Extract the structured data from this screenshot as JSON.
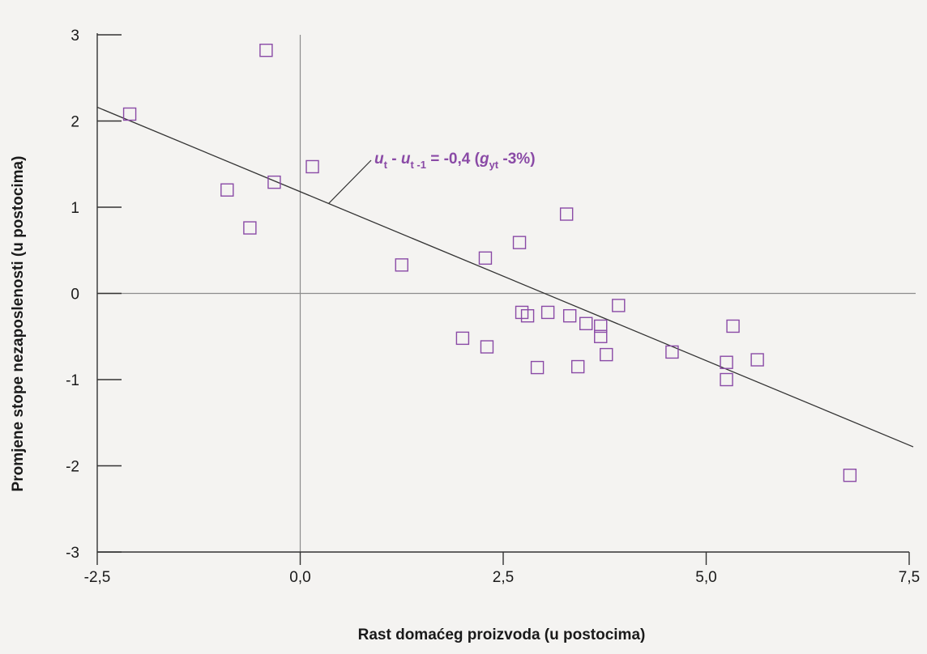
{
  "colors": {
    "background": "#f4f3f1",
    "axis": "#333333",
    "reference_line": "#8c8c8c",
    "marker": "#8a4aa6",
    "annotation": "#8a4aa6",
    "fit_line": "#333333"
  },
  "chart_data": {
    "type": "scatter",
    "title": "",
    "xlabel": "Rast domaćeg proizvoda (u postocima)",
    "ylabel": "Promjene stope nezaposlenosti (u postocima)",
    "xlim": [
      -2.5,
      7.5
    ],
    "ylim": [
      -3,
      3
    ],
    "x_ticks": [
      -2.5,
      0.0,
      2.5,
      5.0,
      7.5
    ],
    "x_tick_labels": [
      "-2,5",
      "0,0",
      "2,5",
      "5,0",
      "7,5"
    ],
    "y_ticks": [
      3,
      2,
      1,
      0,
      -1,
      -2,
      -3
    ],
    "y_tick_labels": [
      "3",
      "2",
      "1",
      "0",
      "-1",
      "-2",
      "-3"
    ],
    "reference_lines": {
      "x": 0,
      "y": 0
    },
    "grid": false,
    "marker_shape": "hollow-square",
    "points": [
      {
        "x": -2.1,
        "y": 2.08
      },
      {
        "x": -0.42,
        "y": 2.82
      },
      {
        "x": -0.9,
        "y": 1.2
      },
      {
        "x": -0.32,
        "y": 1.29
      },
      {
        "x": -0.62,
        "y": 0.76
      },
      {
        "x": 0.15,
        "y": 1.47
      },
      {
        "x": 1.25,
        "y": 0.33
      },
      {
        "x": 2.0,
        "y": -0.52
      },
      {
        "x": 2.28,
        "y": 0.41
      },
      {
        "x": 2.3,
        "y": -0.62
      },
      {
        "x": 2.7,
        "y": 0.59
      },
      {
        "x": 2.73,
        "y": -0.22
      },
      {
        "x": 2.8,
        "y": -0.26
      },
      {
        "x": 2.92,
        "y": -0.86
      },
      {
        "x": 3.05,
        "y": -0.22
      },
      {
        "x": 3.28,
        "y": 0.92
      },
      {
        "x": 3.32,
        "y": -0.26
      },
      {
        "x": 3.42,
        "y": -0.85
      },
      {
        "x": 3.52,
        "y": -0.35
      },
      {
        "x": 3.7,
        "y": -0.38
      },
      {
        "x": 3.7,
        "y": -0.5
      },
      {
        "x": 3.77,
        "y": -0.71
      },
      {
        "x": 3.92,
        "y": -0.14
      },
      {
        "x": 4.58,
        "y": -0.68
      },
      {
        "x": 5.25,
        "y": -0.8
      },
      {
        "x": 5.25,
        "y": -1.0
      },
      {
        "x": 5.33,
        "y": -0.38
      },
      {
        "x": 5.63,
        "y": -0.77
      },
      {
        "x": 6.77,
        "y": -2.11
      }
    ],
    "fit_line": {
      "from": {
        "x": -2.5,
        "y": 2.16
      },
      "to": {
        "x": 7.55,
        "y": -1.78
      }
    },
    "annotation": {
      "u1": "u",
      "s1": "t",
      "mid": " - ",
      "u2": "u",
      "s2": "t -1",
      "eq": " = -0,4 (",
      "g": "g",
      "s3": "yt",
      "tail": " -3%)"
    }
  }
}
